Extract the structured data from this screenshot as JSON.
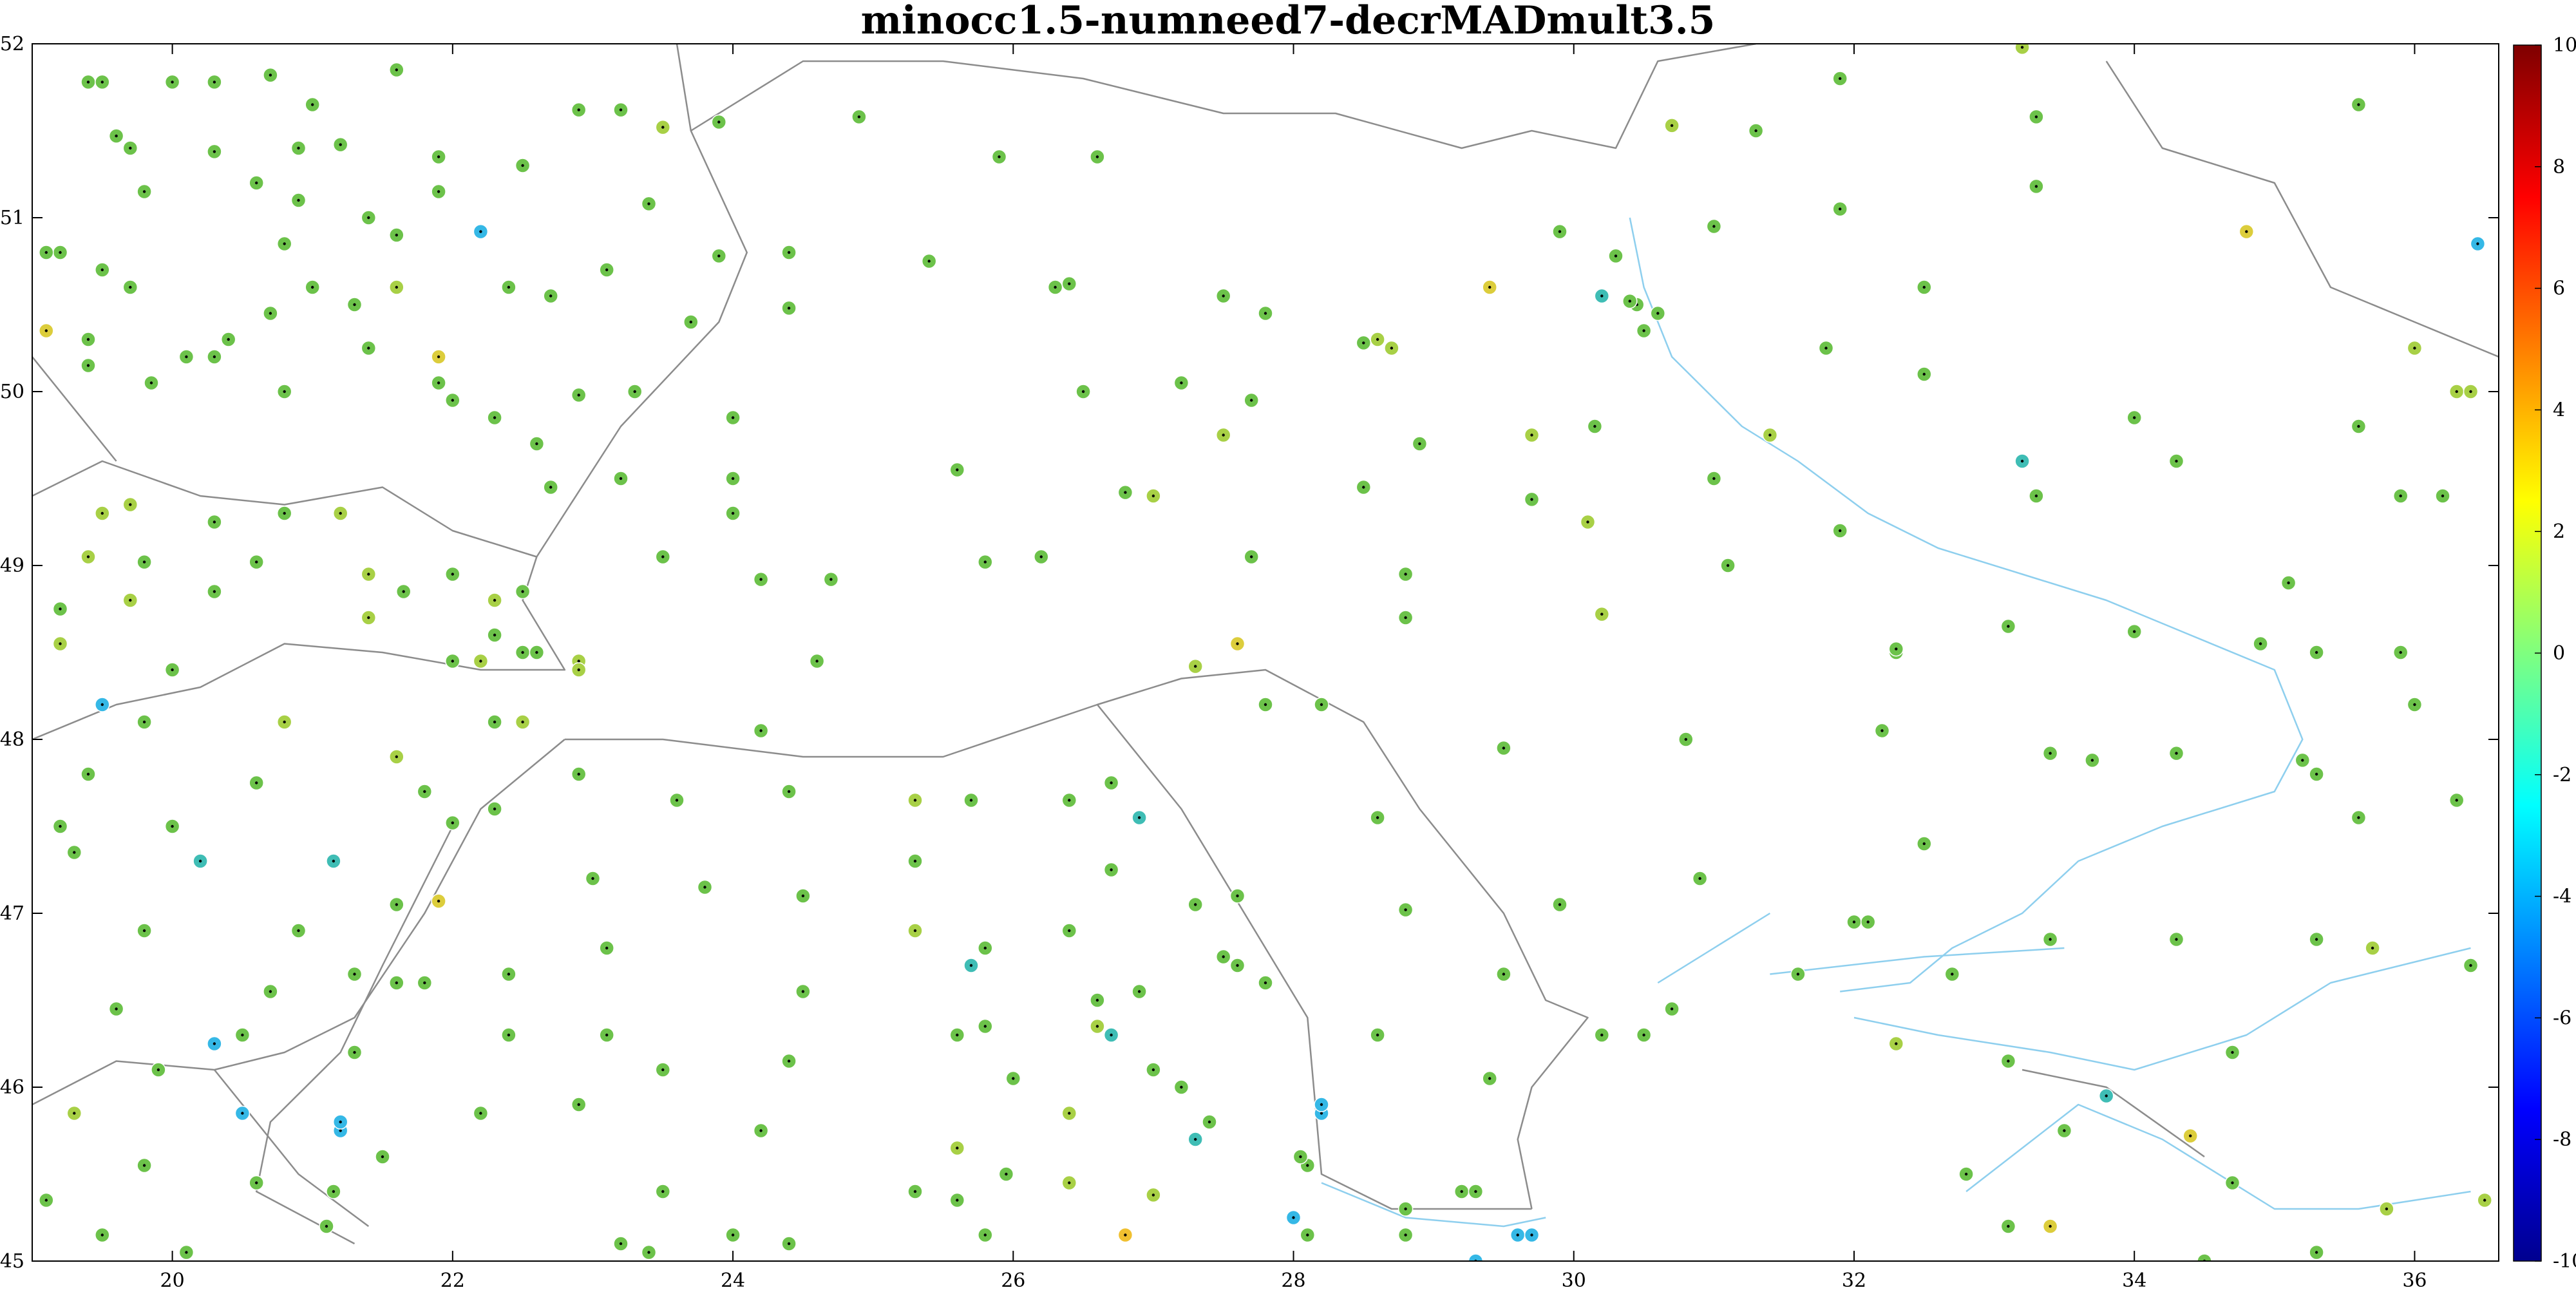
{
  "chart_data": {
    "type": "scatter",
    "title": "minocc1.5-numneed7-decrMADmult3.5",
    "xlabel": "",
    "ylabel": "",
    "xlim": [
      19,
      36.6
    ],
    "ylim": [
      45,
      52
    ],
    "x_ticks": [
      20,
      22,
      24,
      26,
      28,
      30,
      32,
      34,
      36
    ],
    "y_ticks": [
      45,
      46,
      47,
      48,
      49,
      50,
      51,
      52
    ],
    "grid": false,
    "colorbar": {
      "min": -10,
      "max": 10,
      "ticks": [
        -10,
        -8,
        -6,
        -4,
        -2,
        0,
        2,
        4,
        6,
        8,
        10
      ],
      "colormap": "jet-like (dark blue to dark red)"
    },
    "colors": {
      "border": "#8c8c8c",
      "water": "#8ecfee",
      "marker_edge": "#ffffff"
    },
    "stations": [
      [
        19.4,
        51.78,
        0.6
      ],
      [
        19.6,
        51.47,
        0.8
      ],
      [
        19.5,
        51.78,
        0.4
      ],
      [
        19.7,
        51.4,
        0.3
      ],
      [
        20.0,
        51.78,
        0.5
      ],
      [
        20.3,
        51.78,
        0.2
      ],
      [
        20.7,
        51.82,
        0.3
      ],
      [
        21.0,
        51.65,
        0.1
      ],
      [
        21.6,
        51.85,
        -0.2
      ],
      [
        21.2,
        51.42,
        0.7
      ],
      [
        20.9,
        51.4,
        0.5
      ],
      [
        20.6,
        51.2,
        0.2
      ],
      [
        20.3,
        51.38,
        0.4
      ],
      [
        19.8,
        51.15,
        0.3
      ],
      [
        20.9,
        51.1,
        0.2
      ],
      [
        21.4,
        51.0,
        0.1
      ],
      [
        21.9,
        51.35,
        -0.5
      ],
      [
        21.9,
        51.15,
        0.2
      ],
      [
        22.5,
        51.3,
        0.1
      ],
      [
        22.9,
        51.62,
        0.3
      ],
      [
        23.2,
        51.62,
        0.2
      ],
      [
        23.5,
        51.52,
        1.2
      ],
      [
        23.4,
        51.08,
        0.3
      ],
      [
        23.1,
        50.7,
        0.4
      ],
      [
        22.7,
        50.55,
        0.6
      ],
      [
        22.4,
        50.6,
        0.3
      ],
      [
        22.2,
        50.92,
        -2.8
      ],
      [
        21.6,
        50.9,
        0.8
      ],
      [
        21.6,
        50.6,
        1.4
      ],
      [
        21.3,
        50.5,
        0.5
      ],
      [
        21.0,
        50.6,
        0.3
      ],
      [
        20.8,
        50.85,
        0.2
      ],
      [
        20.7,
        50.45,
        0.3
      ],
      [
        20.4,
        50.3,
        0.4
      ],
      [
        20.1,
        50.2,
        0.5
      ],
      [
        19.7,
        50.6,
        0.6
      ],
      [
        19.5,
        50.7,
        0.2
      ],
      [
        19.2,
        50.8,
        0.9
      ],
      [
        19.1,
        50.8,
        0.5
      ],
      [
        19.1,
        50.35,
        2.5
      ],
      [
        19.4,
        50.3,
        0.6
      ],
      [
        19.4,
        50.15,
        0.4
      ],
      [
        19.85,
        50.05,
        0.5
      ],
      [
        20.3,
        50.2,
        0.2
      ],
      [
        20.8,
        50.0,
        0.3
      ],
      [
        21.4,
        50.25,
        0.2
      ],
      [
        21.9,
        50.2,
        3.1
      ],
      [
        21.9,
        50.05,
        0.4
      ],
      [
        22.0,
        49.95,
        0.2
      ],
      [
        22.3,
        49.85,
        0.1
      ],
      [
        22.6,
        49.7,
        0.3
      ],
      [
        22.9,
        49.98,
        0.5
      ],
      [
        23.3,
        50.0,
        0.3
      ],
      [
        23.7,
        50.4,
        0.5
      ],
      [
        23.9,
        50.78,
        0.2
      ],
      [
        24.4,
        50.8,
        0.4
      ],
      [
        24.4,
        50.48,
        -0.2
      ],
      [
        24.9,
        51.58,
        0.1
      ],
      [
        23.9,
        51.55,
        0.3
      ],
      [
        25.4,
        50.75,
        0.6
      ],
      [
        25.9,
        51.35,
        0.5
      ],
      [
        26.6,
        51.35,
        -0.6
      ],
      [
        26.3,
        50.6,
        0.6
      ],
      [
        26.4,
        50.62,
        0.4
      ],
      [
        27.5,
        50.55,
        0.3
      ],
      [
        27.8,
        50.45,
        0.4
      ],
      [
        28.6,
        50.3,
        1.5
      ],
      [
        28.7,
        50.25,
        1.2
      ],
      [
        28.5,
        50.28,
        0.9
      ],
      [
        29.4,
        50.6,
        2.5
      ],
      [
        29.9,
        50.92,
        0.4
      ],
      [
        30.2,
        50.55,
        -1.8
      ],
      [
        30.3,
        50.78,
        0.4
      ],
      [
        30.45,
        50.5,
        0.5
      ],
      [
        30.5,
        50.35,
        0.2
      ],
      [
        30.6,
        50.45,
        0.3
      ],
      [
        30.4,
        50.52,
        0.6
      ],
      [
        31.0,
        50.95,
        0.3
      ],
      [
        31.3,
        51.5,
        0.7
      ],
      [
        30.7,
        51.53,
        1.3
      ],
      [
        31.9,
        51.05,
        0.5
      ],
      [
        31.9,
        51.8,
        0.8
      ],
      [
        33.3,
        51.58,
        -0.5
      ],
      [
        33.3,
        51.18,
        0.4
      ],
      [
        33.2,
        51.98,
        1.5
      ],
      [
        34.8,
        50.92,
        2.4
      ],
      [
        35.6,
        51.65,
        0.8
      ],
      [
        36.45,
        50.85,
        -3.2
      ],
      [
        36.0,
        50.25,
        1.3
      ],
      [
        36.3,
        50.0,
        1.2
      ],
      [
        36.4,
        50.0,
        1.6
      ],
      [
        35.6,
        49.8,
        0.3
      ],
      [
        35.9,
        49.4,
        0.4
      ],
      [
        34.3,
        49.6,
        0.1
      ],
      [
        34.0,
        49.85,
        0.6
      ],
      [
        33.2,
        49.6,
        -1.6
      ],
      [
        33.3,
        49.4,
        0.3
      ],
      [
        32.5,
        50.1,
        1.1
      ],
      [
        32.5,
        50.6,
        0.8
      ],
      [
        31.8,
        50.25,
        1.0
      ],
      [
        31.0,
        49.5,
        0.2
      ],
      [
        31.4,
        49.75,
        1.3
      ],
      [
        31.9,
        49.2,
        0.4
      ],
      [
        31.1,
        49.0,
        0.6
      ],
      [
        30.1,
        49.25,
        1.6
      ],
      [
        30.2,
        48.72,
        1.9
      ],
      [
        30.15,
        49.8,
        0.3
      ],
      [
        29.7,
        49.75,
        1.6
      ],
      [
        29.7,
        49.38,
        0.5
      ],
      [
        28.9,
        49.7,
        0.7
      ],
      [
        28.5,
        49.45,
        0.4
      ],
      [
        28.8,
        48.95,
        0.3
      ],
      [
        28.8,
        48.7,
        0.6
      ],
      [
        29.5,
        47.95,
        0.2
      ],
      [
        29.9,
        47.05,
        0.4
      ],
      [
        28.6,
        47.55,
        0.6
      ],
      [
        28.8,
        47.02,
        0.8
      ],
      [
        28.6,
        46.3,
        1.1
      ],
      [
        28.2,
        48.2,
        1.1
      ],
      [
        27.8,
        48.2,
        0.3
      ],
      [
        27.6,
        48.55,
        2.4
      ],
      [
        27.3,
        48.42,
        1.9
      ],
      [
        27.7,
        49.05,
        0.6
      ],
      [
        27.0,
        49.4,
        1.2
      ],
      [
        27.5,
        49.75,
        1.4
      ],
      [
        27.2,
        50.05,
        1.0
      ],
      [
        26.5,
        50.0,
        -1.1
      ],
      [
        27.7,
        49.95,
        0.5
      ],
      [
        26.8,
        49.42,
        1.1
      ],
      [
        26.2,
        49.05,
        0.7
      ],
      [
        25.6,
        49.55,
        1.0
      ],
      [
        25.8,
        49.02,
        0.2
      ],
      [
        24.7,
        48.92,
        0.5
      ],
      [
        24.2,
        48.92,
        0.3
      ],
      [
        24.0,
        49.3,
        1.0
      ],
      [
        24.0,
        49.5,
        -0.7
      ],
      [
        24.0,
        49.85,
        0.3
      ],
      [
        23.5,
        49.05,
        0.8
      ],
      [
        23.2,
        49.5,
        1.1
      ],
      [
        22.7,
        49.45,
        0.5
      ],
      [
        22.5,
        48.85,
        0.6
      ],
      [
        22.3,
        48.6,
        1.0
      ],
      [
        22.5,
        48.5,
        1.0
      ],
      [
        22.6,
        48.5,
        1.1
      ],
      [
        22.9,
        48.45,
        1.5
      ],
      [
        22.9,
        48.4,
        1.7
      ],
      [
        22.2,
        48.45,
        1.5
      ],
      [
        22.0,
        48.45,
        0.8
      ],
      [
        22.3,
        48.1,
        0.4
      ],
      [
        22.5,
        48.1,
        1.5
      ],
      [
        22.3,
        48.8,
        1.3
      ],
      [
        22.0,
        48.95,
        0.6
      ],
      [
        21.65,
        48.85,
        0.4
      ],
      [
        21.4,
        48.7,
        1.7
      ],
      [
        21.4,
        48.95,
        1.4
      ],
      [
        21.2,
        49.3,
        1.2
      ],
      [
        20.8,
        49.3,
        0.8
      ],
      [
        20.6,
        49.02,
        0.4
      ],
      [
        20.3,
        49.25,
        0.6
      ],
      [
        20.3,
        48.85,
        0.5
      ],
      [
        19.7,
        49.35,
        1.2
      ],
      [
        19.5,
        49.3,
        1.5
      ],
      [
        19.4,
        49.05,
        1.6
      ],
      [
        19.8,
        49.02,
        1.1
      ],
      [
        19.2,
        48.75,
        1.1
      ],
      [
        19.2,
        48.55,
        1.4
      ],
      [
        19.7,
        48.8,
        1.3
      ],
      [
        20.0,
        48.4,
        0.3
      ],
      [
        19.5,
        48.2,
        -2.6
      ],
      [
        19.8,
        48.1,
        0.6
      ],
      [
        20.8,
        48.1,
        1.2
      ],
      [
        21.6,
        47.9,
        1.4
      ],
      [
        21.8,
        47.7,
        0.5
      ],
      [
        22.0,
        47.52,
        0.4
      ],
      [
        22.3,
        47.6,
        0.3
      ],
      [
        21.9,
        47.07,
        2.4
      ],
      [
        21.6,
        47.05,
        0.6
      ],
      [
        21.8,
        46.6,
        0.3
      ],
      [
        21.6,
        46.6,
        0.6
      ],
      [
        21.3,
        46.2,
        0.4
      ],
      [
        21.3,
        46.65,
        0.8
      ],
      [
        20.9,
        46.9,
        0.5
      ],
      [
        20.7,
        46.55,
        0.7
      ],
      [
        20.5,
        46.3,
        0.6
      ],
      [
        20.3,
        46.25,
        -3.5
      ],
      [
        20.2,
        47.3,
        -1.3
      ],
      [
        21.15,
        47.3,
        -2.2
      ],
      [
        20.6,
        47.75,
        0.4
      ],
      [
        20.0,
        47.5,
        -0.8
      ],
      [
        19.8,
        46.9,
        0.7
      ],
      [
        19.9,
        46.1,
        0.5
      ],
      [
        19.6,
        46.45,
        0.5
      ],
      [
        19.3,
        47.35,
        0.5
      ],
      [
        19.2,
        47.5,
        0.8
      ],
      [
        19.4,
        47.8,
        0.6
      ],
      [
        19.3,
        45.85,
        1.6
      ],
      [
        19.1,
        45.35,
        0.7
      ],
      [
        19.5,
        45.15,
        0.2
      ],
      [
        20.1,
        45.05,
        0.2
      ],
      [
        19.8,
        45.55,
        -0.5
      ],
      [
        20.5,
        45.85,
        -3.0
      ],
      [
        20.6,
        45.45,
        0.4
      ],
      [
        21.1,
        45.2,
        0.2
      ],
      [
        21.15,
        45.4,
        0.3
      ],
      [
        21.2,
        45.75,
        -3.3
      ],
      [
        21.2,
        45.8,
        -3.6
      ],
      [
        21.5,
        45.6,
        0.5
      ],
      [
        22.2,
        45.85,
        0.8
      ],
      [
        22.4,
        46.3,
        0.5
      ],
      [
        22.4,
        46.65,
        0.3
      ],
      [
        22.9,
        45.9,
        0.8
      ],
      [
        23.1,
        46.3,
        0.6
      ],
      [
        23.1,
        46.8,
        0.5
      ],
      [
        23.0,
        47.2,
        0.7
      ],
      [
        22.9,
        47.8,
        -1.0
      ],
      [
        23.6,
        47.65,
        0.3
      ],
      [
        23.5,
        46.1,
        0.5
      ],
      [
        23.2,
        45.1,
        0.9
      ],
      [
        23.4,
        45.05,
        -0.6
      ],
      [
        23.5,
        45.4,
        0.4
      ],
      [
        24.0,
        45.15,
        0.3
      ],
      [
        24.4,
        45.1,
        0.5
      ],
      [
        24.2,
        45.75,
        0.7
      ],
      [
        24.4,
        46.15,
        0.3
      ],
      [
        24.5,
        46.55,
        -0.7
      ],
      [
        24.5,
        47.1,
        0.5
      ],
      [
        24.4,
        47.7,
        -0.3
      ],
      [
        24.2,
        48.05,
        0.1
      ],
      [
        23.8,
        47.15,
        0.4
      ],
      [
        24.6,
        48.45,
        0.3
      ],
      [
        25.3,
        47.65,
        2.1
      ],
      [
        25.7,
        47.65,
        0.4
      ],
      [
        25.3,
        47.3,
        0.6
      ],
      [
        25.3,
        46.9,
        1.7
      ],
      [
        25.8,
        46.8,
        1.1
      ],
      [
        25.7,
        46.7,
        -1.2
      ],
      [
        25.6,
        46.3,
        0.5
      ],
      [
        25.8,
        46.35,
        0.3
      ],
      [
        26.0,
        46.05,
        0.4
      ],
      [
        25.6,
        45.65,
        1.5
      ],
      [
        25.3,
        45.4,
        0.6
      ],
      [
        25.6,
        45.35,
        1.1
      ],
      [
        25.8,
        45.15,
        0.4
      ],
      [
        25.95,
        45.5,
        0.6
      ],
      [
        26.4,
        45.45,
        1.4
      ],
      [
        26.4,
        45.85,
        1.2
      ],
      [
        26.4,
        46.9,
        0.3
      ],
      [
        26.6,
        46.5,
        0.5
      ],
      [
        26.6,
        46.35,
        1.4
      ],
      [
        26.7,
        46.3,
        -2.3
      ],
      [
        26.4,
        47.65,
        0.7
      ],
      [
        26.4,
        47.65,
        0.3
      ],
      [
        26.7,
        47.75,
        0.6
      ],
      [
        26.9,
        47.55,
        -1.5
      ],
      [
        26.7,
        47.25,
        0.6
      ],
      [
        26.9,
        46.55,
        0.9
      ],
      [
        27.0,
        46.1,
        1.1
      ],
      [
        27.2,
        46.0,
        0.7
      ],
      [
        27.3,
        45.7,
        -1.3
      ],
      [
        27.0,
        45.38,
        1.9
      ],
      [
        26.8,
        45.15,
        4.2
      ],
      [
        27.4,
        45.8,
        0.8
      ],
      [
        27.5,
        46.75,
        0.6
      ],
      [
        27.6,
        46.7,
        0.9
      ],
      [
        27.8,
        46.6,
        0.5
      ],
      [
        27.6,
        47.1,
        0.3
      ],
      [
        27.3,
        47.05,
        0.4
      ],
      [
        28.1,
        45.55,
        0.8
      ],
      [
        28.0,
        45.25,
        -3.6
      ],
      [
        28.05,
        45.6,
        0.4
      ],
      [
        28.2,
        45.85,
        -2.8
      ],
      [
        28.2,
        45.9,
        -3.0
      ],
      [
        28.1,
        45.15,
        0.4
      ],
      [
        28.8,
        45.15,
        0.7
      ],
      [
        28.8,
        45.3,
        1.0
      ],
      [
        29.2,
        45.4,
        0.6
      ],
      [
        29.3,
        45.4,
        0.5
      ],
      [
        29.3,
        45.0,
        -3.4
      ],
      [
        29.6,
        45.15,
        -3.5
      ],
      [
        29.7,
        45.15,
        -4.5
      ],
      [
        29.4,
        46.05,
        0.4
      ],
      [
        29.5,
        46.65,
        0.6
      ],
      [
        30.2,
        46.3,
        1.0
      ],
      [
        30.5,
        46.3,
        0.8
      ],
      [
        30.7,
        46.45,
        0.3
      ],
      [
        30.9,
        47.2,
        0.4
      ],
      [
        30.8,
        48.0,
        0.5
      ],
      [
        31.6,
        46.65,
        0.6
      ],
      [
        32.0,
        46.95,
        0.8
      ],
      [
        32.1,
        46.95,
        1.0
      ],
      [
        32.3,
        46.25,
        1.2
      ],
      [
        32.7,
        46.65,
        0.7
      ],
      [
        32.5,
        47.4,
        0.5
      ],
      [
        32.2,
        48.05,
        0.4
      ],
      [
        32.3,
        48.5,
        0.6
      ],
      [
        32.3,
        48.52,
        0.3
      ],
      [
        33.1,
        48.65,
        1.1
      ],
      [
        33.4,
        47.92,
        0.5
      ],
      [
        33.7,
        47.88,
        0.8
      ],
      [
        34.3,
        47.92,
        0.3
      ],
      [
        34.0,
        48.62,
        0.4
      ],
      [
        33.4,
        46.85,
        0.5
      ],
      [
        33.1,
        46.15,
        0.3
      ],
      [
        33.5,
        45.75,
        0.6
      ],
      [
        33.8,
        45.95,
        -1.6
      ],
      [
        33.1,
        45.2,
        0.7
      ],
      [
        33.4,
        45.2,
        2.8
      ],
      [
        32.8,
        45.5,
        1.1
      ],
      [
        34.4,
        45.72,
        2.3
      ],
      [
        34.5,
        45.0,
        0.7
      ],
      [
        34.3,
        46.85,
        0.5
      ],
      [
        34.7,
        46.2,
        0.6
      ],
      [
        34.7,
        45.45,
        0.9
      ],
      [
        35.3,
        45.05,
        0.5
      ],
      [
        35.3,
        46.85,
        0.3
      ],
      [
        35.7,
        46.8,
        1.9
      ],
      [
        35.2,
        47.88,
        0.6
      ],
      [
        35.3,
        47.8,
        0.4
      ],
      [
        35.3,
        48.5,
        0.9
      ],
      [
        35.1,
        48.9,
        0.6
      ],
      [
        35.6,
        47.55,
        0.7
      ],
      [
        35.9,
        48.5,
        0.9
      ],
      [
        36.0,
        48.2,
        0.4
      ],
      [
        36.3,
        47.65,
        0.5
      ],
      [
        36.2,
        49.4,
        0.6
      ],
      [
        36.4,
        46.7,
        0.6
      ],
      [
        36.5,
        45.35,
        1.9
      ],
      [
        35.8,
        45.3,
        1.8
      ],
      [
        34.9,
        48.55,
        0.3
      ]
    ]
  }
}
